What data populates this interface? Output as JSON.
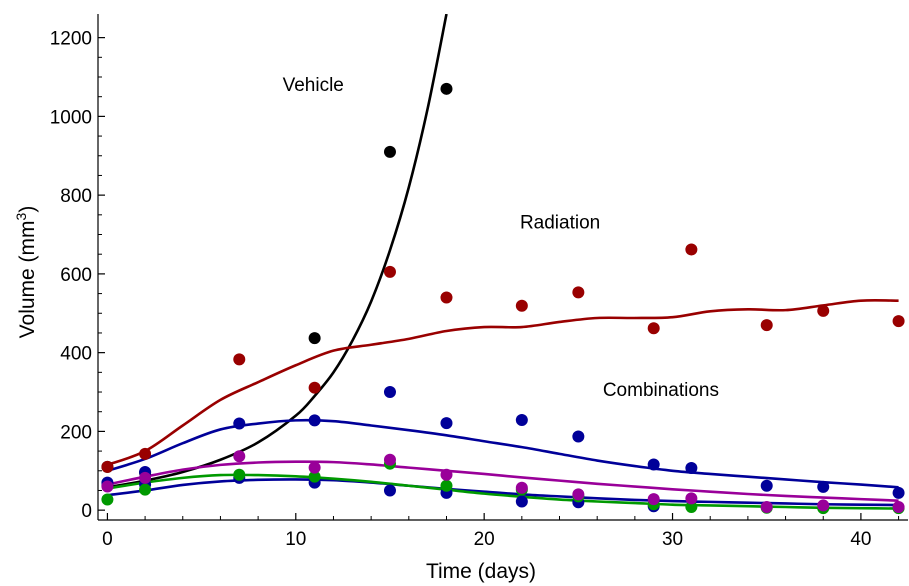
{
  "chart_data": {
    "type": "scatter",
    "xlabel": "Time (days)",
    "ylabel_main": "Volume (mm",
    "ylabel_sup": "3",
    "ylabel_tail": ")",
    "xlim": [
      -0.5,
      42.5
    ],
    "ylim": [
      -25,
      1260
    ],
    "x_ticks": [
      0,
      10,
      20,
      30,
      40
    ],
    "y_ticks": [
      0,
      200,
      400,
      600,
      800,
      1000,
      1200
    ],
    "x_tick_labels": [
      "0",
      "10",
      "20",
      "30",
      "40"
    ],
    "y_tick_labels": [
      "0",
      "200",
      "400",
      "600",
      "800",
      "1000",
      "1200"
    ],
    "grid": false,
    "annotations": [
      {
        "text": "Vehicle",
        "x": 9.3,
        "y": 1065
      },
      {
        "text": "Radiation",
        "x": 21.9,
        "y": 715
      },
      {
        "text": "Combinations",
        "x": 26.3,
        "y": 290
      }
    ],
    "series": [
      {
        "color": "#000000",
        "points": [
          [
            0,
            110
          ],
          [
            2,
            95
          ],
          [
            11,
            437
          ],
          [
            15,
            910
          ],
          [
            18,
            1070
          ]
        ],
        "curve": [
          [
            0,
            58
          ],
          [
            2,
            75
          ],
          [
            4,
            97
          ],
          [
            6,
            128
          ],
          [
            8,
            172
          ],
          [
            10,
            240
          ],
          [
            11,
            290
          ],
          [
            12,
            350
          ],
          [
            13,
            430
          ],
          [
            14,
            530
          ],
          [
            15,
            660
          ],
          [
            16,
            820
          ],
          [
            17,
            1020
          ],
          [
            18,
            1260
          ]
        ]
      },
      {
        "color": "#990000",
        "points": [
          [
            0,
            110
          ],
          [
            2,
            143
          ],
          [
            7,
            383
          ],
          [
            11,
            311
          ],
          [
            15,
            605
          ],
          [
            18,
            540
          ],
          [
            22,
            519
          ],
          [
            25,
            553
          ],
          [
            29,
            462
          ],
          [
            31,
            662
          ],
          [
            35,
            470
          ],
          [
            38,
            506
          ],
          [
            42,
            480
          ]
        ],
        "curve": [
          [
            0,
            115
          ],
          [
            2,
            150
          ],
          [
            4,
            215
          ],
          [
            6,
            280
          ],
          [
            8,
            325
          ],
          [
            10,
            368
          ],
          [
            12,
            405
          ],
          [
            14,
            420
          ],
          [
            16,
            435
          ],
          [
            18,
            455
          ],
          [
            20,
            465
          ],
          [
            22,
            465
          ],
          [
            24,
            478
          ],
          [
            26,
            488
          ],
          [
            28,
            488
          ],
          [
            30,
            490
          ],
          [
            32,
            505
          ],
          [
            34,
            510
          ],
          [
            36,
            508
          ],
          [
            38,
            520
          ],
          [
            40,
            532
          ],
          [
            42,
            532
          ]
        ]
      },
      {
        "color": "#000099",
        "points": [
          [
            0,
            70
          ],
          [
            2,
            97
          ],
          [
            7,
            220
          ],
          [
            11,
            228
          ],
          [
            15,
            300
          ],
          [
            18,
            221
          ],
          [
            22,
            229
          ],
          [
            25,
            187
          ],
          [
            29,
            116
          ],
          [
            31,
            107
          ],
          [
            35,
            62
          ],
          [
            38,
            59
          ],
          [
            42,
            44
          ]
        ],
        "curve": [
          [
            0,
            100
          ],
          [
            2,
            130
          ],
          [
            4,
            170
          ],
          [
            6,
            205
          ],
          [
            8,
            220
          ],
          [
            10,
            228
          ],
          [
            12,
            226
          ],
          [
            14,
            215
          ],
          [
            16,
            203
          ],
          [
            18,
            190
          ],
          [
            20,
            175
          ],
          [
            22,
            160
          ],
          [
            24,
            143
          ],
          [
            26,
            126
          ],
          [
            28,
            112
          ],
          [
            30,
            100
          ],
          [
            32,
            92
          ],
          [
            34,
            85
          ],
          [
            36,
            78
          ],
          [
            38,
            71
          ],
          [
            40,
            65
          ],
          [
            42,
            58
          ]
        ]
      },
      {
        "color": "#000099",
        "points": [
          [
            0,
            63
          ],
          [
            2,
            65
          ],
          [
            7,
            82
          ],
          [
            11,
            70
          ],
          [
            15,
            50
          ],
          [
            18,
            44
          ],
          [
            22,
            22
          ],
          [
            25,
            20
          ],
          [
            29,
            10
          ]
        ],
        "curve": [
          [
            0,
            38
          ],
          [
            2,
            50
          ],
          [
            4,
            64
          ],
          [
            6,
            73
          ],
          [
            8,
            77
          ],
          [
            10,
            78
          ],
          [
            12,
            76
          ],
          [
            14,
            70
          ],
          [
            16,
            62
          ],
          [
            18,
            54
          ],
          [
            20,
            47
          ],
          [
            22,
            40
          ],
          [
            24,
            35
          ],
          [
            26,
            30
          ],
          [
            28,
            26
          ],
          [
            30,
            23
          ],
          [
            32,
            21
          ],
          [
            34,
            19
          ],
          [
            36,
            17
          ],
          [
            38,
            15
          ],
          [
            40,
            14
          ],
          [
            42,
            13
          ]
        ]
      },
      {
        "color": "#009900",
        "points": [
          [
            0,
            27
          ],
          [
            2,
            52
          ],
          [
            7,
            90
          ],
          [
            11,
            85
          ],
          [
            15,
            118
          ],
          [
            18,
            62
          ],
          [
            22,
            52
          ],
          [
            25,
            35
          ],
          [
            29,
            15
          ],
          [
            31,
            8
          ],
          [
            35,
            6
          ],
          [
            38,
            5
          ],
          [
            42,
            5
          ]
        ],
        "curve": [
          [
            0,
            55
          ],
          [
            2,
            70
          ],
          [
            4,
            82
          ],
          [
            6,
            89
          ],
          [
            8,
            89
          ],
          [
            10,
            86
          ],
          [
            12,
            80
          ],
          [
            14,
            72
          ],
          [
            16,
            62
          ],
          [
            18,
            52
          ],
          [
            20,
            42
          ],
          [
            22,
            34
          ],
          [
            24,
            27
          ],
          [
            26,
            22
          ],
          [
            28,
            18
          ],
          [
            30,
            14
          ],
          [
            32,
            12
          ],
          [
            34,
            10
          ],
          [
            36,
            8
          ],
          [
            38,
            6
          ],
          [
            40,
            5
          ],
          [
            42,
            4
          ]
        ]
      },
      {
        "color": "#990099",
        "points": [
          [
            0,
            60
          ],
          [
            2,
            82
          ],
          [
            7,
            137
          ],
          [
            11,
            108
          ],
          [
            15,
            128
          ],
          [
            18,
            90
          ],
          [
            22,
            57
          ],
          [
            25,
            40
          ],
          [
            29,
            28
          ],
          [
            31,
            30
          ],
          [
            35,
            8
          ],
          [
            38,
            12
          ],
          [
            42,
            8
          ]
        ],
        "curve": [
          [
            0,
            65
          ],
          [
            2,
            85
          ],
          [
            4,
            103
          ],
          [
            6,
            115
          ],
          [
            8,
            121
          ],
          [
            10,
            123
          ],
          [
            12,
            122
          ],
          [
            14,
            116
          ],
          [
            16,
            108
          ],
          [
            18,
            100
          ],
          [
            20,
            92
          ],
          [
            22,
            83
          ],
          [
            24,
            75
          ],
          [
            26,
            67
          ],
          [
            28,
            60
          ],
          [
            30,
            53
          ],
          [
            32,
            47
          ],
          [
            34,
            41
          ],
          [
            36,
            36
          ],
          [
            38,
            32
          ],
          [
            40,
            28
          ],
          [
            42,
            24
          ]
        ]
      }
    ]
  }
}
